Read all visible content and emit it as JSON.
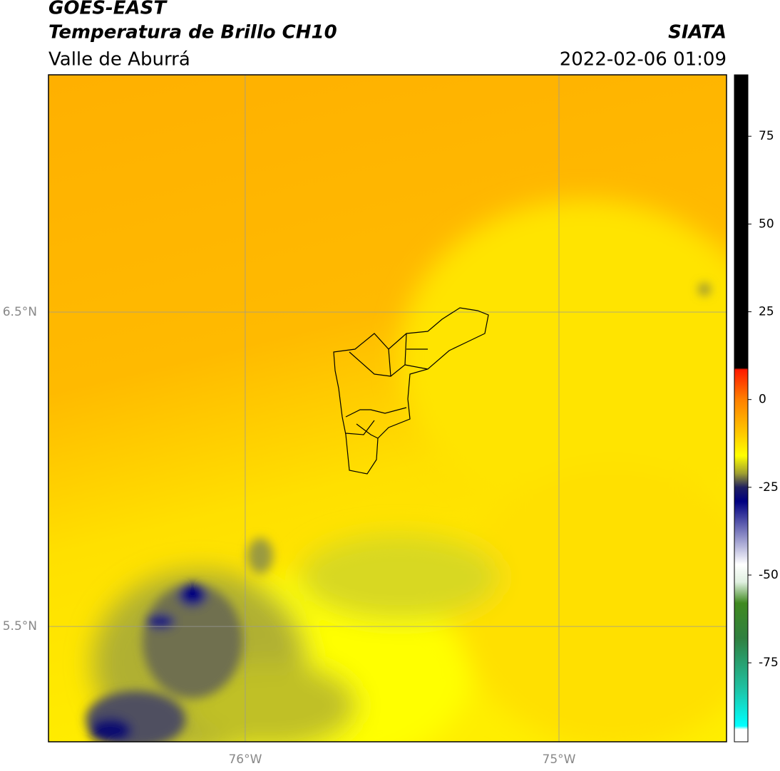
{
  "header": {
    "title": "GOES-EAST",
    "subtitle": "Temperatura de Brillo CH10",
    "region": "Valle de Aburrá",
    "source": "SIATA",
    "datetime": "2022-02-06 01:09"
  },
  "map": {
    "xlim": [
      -76.627,
      -74.466
    ],
    "ylim": [
      5.133,
      7.255
    ],
    "xticks": [
      {
        "value": -76,
        "label": "76°W"
      },
      {
        "value": -75,
        "label": "75°W"
      }
    ],
    "yticks": [
      {
        "value": 6.5,
        "label": "6.5°N"
      },
      {
        "value": 5.5,
        "label": "5.5°N"
      }
    ],
    "grid": true
  },
  "colorbar": {
    "lim": [
      -97.5,
      92.5
    ],
    "ticks": [
      75,
      50,
      25,
      0,
      -25,
      -50,
      -75
    ],
    "stops": [
      {
        "value": 92.5,
        "color": "#000000"
      },
      {
        "value": 9,
        "color": "#000000"
      },
      {
        "value": 8.5,
        "color": "#ff1a00"
      },
      {
        "value": 0,
        "color": "#ff8000"
      },
      {
        "value": -10,
        "color": "#ffcc00"
      },
      {
        "value": -16,
        "color": "#ffff00"
      },
      {
        "value": -21,
        "color": "#a0a030"
      },
      {
        "value": -25,
        "color": "#202060"
      },
      {
        "value": -29,
        "color": "#000080"
      },
      {
        "value": -38,
        "color": "#8080c0"
      },
      {
        "value": -47,
        "color": "#ffffff"
      },
      {
        "value": -52,
        "color": "#e0f0e0"
      },
      {
        "value": -58,
        "color": "#408a20"
      },
      {
        "value": -68,
        "color": "#308040"
      },
      {
        "value": -82,
        "color": "#20c0a0"
      },
      {
        "value": -93,
        "color": "#00ffff"
      },
      {
        "value": -94,
        "color": "#ffffff"
      },
      {
        "value": -97.5,
        "color": "#ffffff"
      }
    ]
  }
}
